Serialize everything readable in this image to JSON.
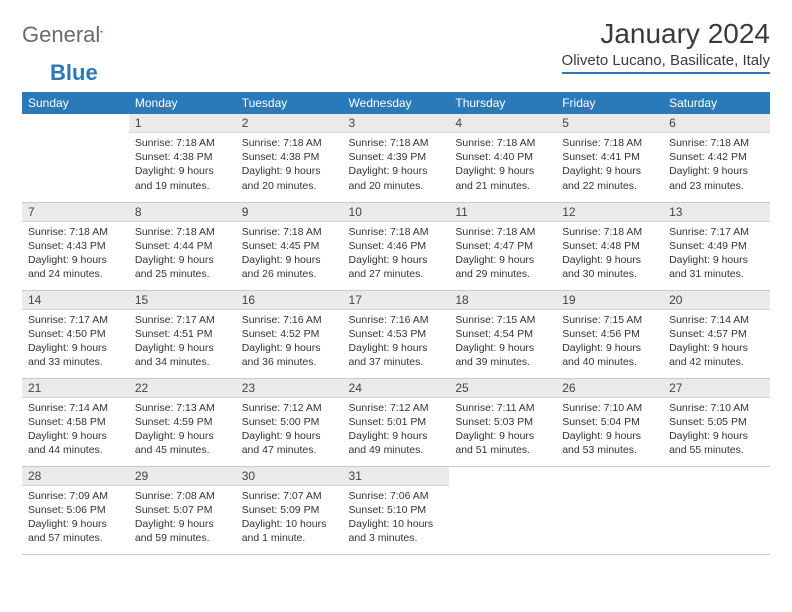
{
  "brand": {
    "gray": "General",
    "blue": "Blue"
  },
  "title": "January 2024",
  "location": "Oliveto Lucano, Basilicate, Italy",
  "colors": {
    "accent": "#2a7ab9",
    "header_bg": "#2a7ab9",
    "daynum_bg": "#e9eaeb"
  },
  "day_headers": [
    "Sunday",
    "Monday",
    "Tuesday",
    "Wednesday",
    "Thursday",
    "Friday",
    "Saturday"
  ],
  "weeks": [
    [
      null,
      {
        "n": "1",
        "sr": "Sunrise: 7:18 AM",
        "ss": "Sunset: 4:38 PM",
        "dl1": "Daylight: 9 hours",
        "dl2": "and 19 minutes."
      },
      {
        "n": "2",
        "sr": "Sunrise: 7:18 AM",
        "ss": "Sunset: 4:38 PM",
        "dl1": "Daylight: 9 hours",
        "dl2": "and 20 minutes."
      },
      {
        "n": "3",
        "sr": "Sunrise: 7:18 AM",
        "ss": "Sunset: 4:39 PM",
        "dl1": "Daylight: 9 hours",
        "dl2": "and 20 minutes."
      },
      {
        "n": "4",
        "sr": "Sunrise: 7:18 AM",
        "ss": "Sunset: 4:40 PM",
        "dl1": "Daylight: 9 hours",
        "dl2": "and 21 minutes."
      },
      {
        "n": "5",
        "sr": "Sunrise: 7:18 AM",
        "ss": "Sunset: 4:41 PM",
        "dl1": "Daylight: 9 hours",
        "dl2": "and 22 minutes."
      },
      {
        "n": "6",
        "sr": "Sunrise: 7:18 AM",
        "ss": "Sunset: 4:42 PM",
        "dl1": "Daylight: 9 hours",
        "dl2": "and 23 minutes."
      }
    ],
    [
      {
        "n": "7",
        "sr": "Sunrise: 7:18 AM",
        "ss": "Sunset: 4:43 PM",
        "dl1": "Daylight: 9 hours",
        "dl2": "and 24 minutes."
      },
      {
        "n": "8",
        "sr": "Sunrise: 7:18 AM",
        "ss": "Sunset: 4:44 PM",
        "dl1": "Daylight: 9 hours",
        "dl2": "and 25 minutes."
      },
      {
        "n": "9",
        "sr": "Sunrise: 7:18 AM",
        "ss": "Sunset: 4:45 PM",
        "dl1": "Daylight: 9 hours",
        "dl2": "and 26 minutes."
      },
      {
        "n": "10",
        "sr": "Sunrise: 7:18 AM",
        "ss": "Sunset: 4:46 PM",
        "dl1": "Daylight: 9 hours",
        "dl2": "and 27 minutes."
      },
      {
        "n": "11",
        "sr": "Sunrise: 7:18 AM",
        "ss": "Sunset: 4:47 PM",
        "dl1": "Daylight: 9 hours",
        "dl2": "and 29 minutes."
      },
      {
        "n": "12",
        "sr": "Sunrise: 7:18 AM",
        "ss": "Sunset: 4:48 PM",
        "dl1": "Daylight: 9 hours",
        "dl2": "and 30 minutes."
      },
      {
        "n": "13",
        "sr": "Sunrise: 7:17 AM",
        "ss": "Sunset: 4:49 PM",
        "dl1": "Daylight: 9 hours",
        "dl2": "and 31 minutes."
      }
    ],
    [
      {
        "n": "14",
        "sr": "Sunrise: 7:17 AM",
        "ss": "Sunset: 4:50 PM",
        "dl1": "Daylight: 9 hours",
        "dl2": "and 33 minutes."
      },
      {
        "n": "15",
        "sr": "Sunrise: 7:17 AM",
        "ss": "Sunset: 4:51 PM",
        "dl1": "Daylight: 9 hours",
        "dl2": "and 34 minutes."
      },
      {
        "n": "16",
        "sr": "Sunrise: 7:16 AM",
        "ss": "Sunset: 4:52 PM",
        "dl1": "Daylight: 9 hours",
        "dl2": "and 36 minutes."
      },
      {
        "n": "17",
        "sr": "Sunrise: 7:16 AM",
        "ss": "Sunset: 4:53 PM",
        "dl1": "Daylight: 9 hours",
        "dl2": "and 37 minutes."
      },
      {
        "n": "18",
        "sr": "Sunrise: 7:15 AM",
        "ss": "Sunset: 4:54 PM",
        "dl1": "Daylight: 9 hours",
        "dl2": "and 39 minutes."
      },
      {
        "n": "19",
        "sr": "Sunrise: 7:15 AM",
        "ss": "Sunset: 4:56 PM",
        "dl1": "Daylight: 9 hours",
        "dl2": "and 40 minutes."
      },
      {
        "n": "20",
        "sr": "Sunrise: 7:14 AM",
        "ss": "Sunset: 4:57 PM",
        "dl1": "Daylight: 9 hours",
        "dl2": "and 42 minutes."
      }
    ],
    [
      {
        "n": "21",
        "sr": "Sunrise: 7:14 AM",
        "ss": "Sunset: 4:58 PM",
        "dl1": "Daylight: 9 hours",
        "dl2": "and 44 minutes."
      },
      {
        "n": "22",
        "sr": "Sunrise: 7:13 AM",
        "ss": "Sunset: 4:59 PM",
        "dl1": "Daylight: 9 hours",
        "dl2": "and 45 minutes."
      },
      {
        "n": "23",
        "sr": "Sunrise: 7:12 AM",
        "ss": "Sunset: 5:00 PM",
        "dl1": "Daylight: 9 hours",
        "dl2": "and 47 minutes."
      },
      {
        "n": "24",
        "sr": "Sunrise: 7:12 AM",
        "ss": "Sunset: 5:01 PM",
        "dl1": "Daylight: 9 hours",
        "dl2": "and 49 minutes."
      },
      {
        "n": "25",
        "sr": "Sunrise: 7:11 AM",
        "ss": "Sunset: 5:03 PM",
        "dl1": "Daylight: 9 hours",
        "dl2": "and 51 minutes."
      },
      {
        "n": "26",
        "sr": "Sunrise: 7:10 AM",
        "ss": "Sunset: 5:04 PM",
        "dl1": "Daylight: 9 hours",
        "dl2": "and 53 minutes."
      },
      {
        "n": "27",
        "sr": "Sunrise: 7:10 AM",
        "ss": "Sunset: 5:05 PM",
        "dl1": "Daylight: 9 hours",
        "dl2": "and 55 minutes."
      }
    ],
    [
      {
        "n": "28",
        "sr": "Sunrise: 7:09 AM",
        "ss": "Sunset: 5:06 PM",
        "dl1": "Daylight: 9 hours",
        "dl2": "and 57 minutes."
      },
      {
        "n": "29",
        "sr": "Sunrise: 7:08 AM",
        "ss": "Sunset: 5:07 PM",
        "dl1": "Daylight: 9 hours",
        "dl2": "and 59 minutes."
      },
      {
        "n": "30",
        "sr": "Sunrise: 7:07 AM",
        "ss": "Sunset: 5:09 PM",
        "dl1": "Daylight: 10 hours",
        "dl2": "and 1 minute."
      },
      {
        "n": "31",
        "sr": "Sunrise: 7:06 AM",
        "ss": "Sunset: 5:10 PM",
        "dl1": "Daylight: 10 hours",
        "dl2": "and 3 minutes."
      },
      null,
      null,
      null
    ]
  ]
}
